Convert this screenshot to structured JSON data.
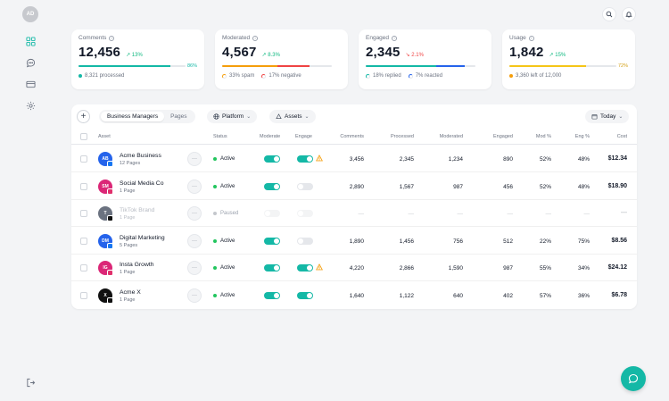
{
  "user": {
    "initials": "AD"
  },
  "nav": [
    {
      "icon": "grid-icon",
      "name": "nav-dashboard"
    },
    {
      "icon": "chat-icon",
      "name": "nav-comments"
    },
    {
      "icon": "card-icon",
      "name": "nav-billing"
    },
    {
      "icon": "gear-icon",
      "name": "nav-settings"
    }
  ],
  "kpis": [
    {
      "title": "Comments",
      "value": "12,456",
      "delta": "13%",
      "trend": "up",
      "bar_pct": "86%",
      "sub": [
        "8,321 processed"
      ],
      "segments": [
        {
          "frac": 0.86,
          "color": "#14b8a6"
        }
      ],
      "bar_pct_color": "#14b8a6",
      "sub_marker": "dot",
      "sub_marker_color": "#14b8a6"
    },
    {
      "title": "Moderated",
      "value": "4,567",
      "delta": "8.3%",
      "trend": "up",
      "bar_pct": "",
      "sub": [
        "33% spam",
        "17% negative"
      ],
      "segments": [
        {
          "frac": 0.5,
          "color": "#f59e0b"
        },
        {
          "frac": 0.3,
          "color": "#ef4444"
        }
      ]
    },
    {
      "title": "Engaged",
      "value": "2,345",
      "delta": "2.1%",
      "trend": "down",
      "bar_pct": "",
      "sub": [
        "18% replied",
        "7% reacted"
      ],
      "segments": [
        {
          "frac": 0.64,
          "color": "#14b8a6"
        },
        {
          "frac": 0.26,
          "color": "#2563eb"
        }
      ]
    },
    {
      "title": "Usage",
      "value": "1,842",
      "delta": "15%",
      "trend": "up",
      "bar_pct": "72%",
      "sub": [
        "3,360 left of 12,000"
      ],
      "segments": [
        {
          "frac": 0.72,
          "color": "#f5c518"
        }
      ],
      "bar_pct_color": "#d4a017",
      "sub_marker": "dot",
      "sub_marker_color": "#f59e0b"
    }
  ],
  "toolbar": {
    "tabs": [
      "Business Managers",
      "Pages"
    ],
    "platform_label": "Platform",
    "assets_label": "Assets",
    "date_label": "Today"
  },
  "columns": {
    "asset": "Asset",
    "status": "Status",
    "moderate": "Moderate",
    "engage": "Engage",
    "comments": "Comments",
    "processed": "Processed",
    "moderated": "Moderated",
    "engaged": "Engaged",
    "mod_pct": "Mod %",
    "eng_pct": "Eng %",
    "cost": "Cost"
  },
  "rows": [
    {
      "name": "Acme Business",
      "sub": "12 Pages",
      "initials": "AB",
      "avatar_color": "#2563eb",
      "platform": "facebook",
      "status": "Active",
      "moderate": true,
      "engage": true,
      "warn": true,
      "comments": "3,456",
      "processed": "2,345",
      "moderated": "1,234",
      "engaged": "890",
      "mod_pct": "52%",
      "eng_pct": "48%",
      "cost": "$12.34"
    },
    {
      "name": "Social Media Co",
      "sub": "1 Page",
      "initials": "SM",
      "avatar_color": "#db2777",
      "platform": "instagram",
      "status": "Active",
      "moderate": true,
      "engage": false,
      "warn": false,
      "comments": "2,890",
      "processed": "1,567",
      "moderated": "987",
      "engaged": "456",
      "mod_pct": "52%",
      "eng_pct": "48%",
      "cost": "$18.90"
    },
    {
      "name": "TikTok Brand",
      "sub": "1 Page",
      "initials": "T",
      "avatar_color": "#6b7280",
      "platform": "tiktok",
      "status": "Paused",
      "moderate": false,
      "engage": false,
      "warn": false,
      "comments": "—",
      "processed": "—",
      "moderated": "—",
      "engaged": "—",
      "mod_pct": "—",
      "eng_pct": "—",
      "cost": "—"
    },
    {
      "name": "Digital Marketing",
      "sub": "5 Pages",
      "initials": "DM",
      "avatar_color": "#2563eb",
      "platform": "facebook",
      "status": "Active",
      "moderate": true,
      "engage": false,
      "warn": false,
      "comments": "1,890",
      "processed": "1,456",
      "moderated": "756",
      "engaged": "512",
      "mod_pct": "22%",
      "eng_pct": "75%",
      "cost": "$8.56"
    },
    {
      "name": "Insta Growth",
      "sub": "1 Page",
      "initials": "IG",
      "avatar_color": "#db2777",
      "platform": "instagram",
      "status": "Active",
      "moderate": true,
      "engage": true,
      "warn": true,
      "comments": "4,220",
      "processed": "2,866",
      "moderated": "1,590",
      "engaged": "987",
      "mod_pct": "55%",
      "eng_pct": "34%",
      "cost": "$24.12"
    },
    {
      "name": "Acme X",
      "sub": "1 Page",
      "initials": "X",
      "avatar_color": "#111111",
      "platform": "x",
      "status": "Active",
      "moderate": true,
      "engage": true,
      "warn": false,
      "comments": "1,640",
      "processed": "1,122",
      "moderated": "640",
      "engaged": "402",
      "mod_pct": "57%",
      "eng_pct": "36%",
      "cost": "$6.78"
    }
  ],
  "colors": {
    "accent": "#14b8a6",
    "active": "#22c55e",
    "paused": "#c4c7cc",
    "warn": "#f59e0b"
  }
}
